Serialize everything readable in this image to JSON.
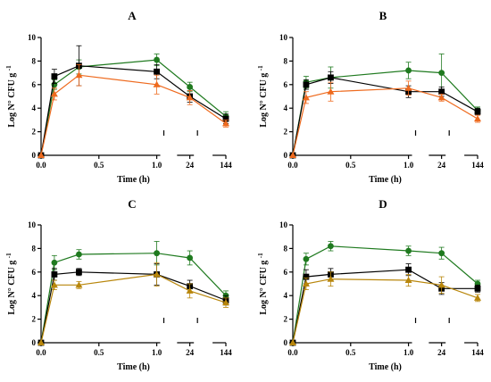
{
  "chart_data": [
    {
      "type": "line",
      "title": "A",
      "xlabel": "Time (h)",
      "ylabel": "Log N° CFU g",
      "ylabel_superscript": "-1",
      "ylim": [
        0,
        10
      ],
      "yticks": [
        0,
        2,
        4,
        6,
        8,
        10
      ],
      "x_ticks": [
        "0.0",
        "0.5",
        "1.0",
        "24",
        "144"
      ],
      "x": [
        "0",
        "0.083",
        "0.33",
        "1.0",
        "24",
        "144"
      ],
      "series": [
        {
          "color": "#1f7a1f",
          "marker": "circle",
          "values": [
            0,
            6.0,
            7.5,
            8.1,
            5.8,
            3.3
          ],
          "errors": [
            0,
            0.4,
            0.6,
            0.5,
            0.4,
            0.4
          ]
        },
        {
          "color": "#000000",
          "marker": "square",
          "values": [
            0,
            6.7,
            7.6,
            7.1,
            5.0,
            3.1
          ],
          "errors": [
            0,
            0.6,
            1.7,
            0.6,
            0.5,
            0.4
          ]
        },
        {
          "color": "#ee6a1e",
          "marker": "triangle",
          "values": [
            0,
            5.2,
            6.8,
            6.0,
            4.9,
            2.7
          ],
          "errors": [
            0,
            0.5,
            0.9,
            0.8,
            0.6,
            0.3
          ]
        }
      ]
    },
    {
      "type": "line",
      "title": "B",
      "xlabel": "Time (h)",
      "ylabel": "Log N° CFU g",
      "ylabel_superscript": "-1",
      "ylim": [
        0,
        10
      ],
      "yticks": [
        0,
        2,
        4,
        6,
        8,
        10
      ],
      "x_ticks": [
        "0.0",
        "0.5",
        "1.0",
        "24",
        "144"
      ],
      "x": [
        "0",
        "0.083",
        "0.33",
        "1.0",
        "24",
        "144"
      ],
      "series": [
        {
          "color": "#1f7a1f",
          "marker": "circle",
          "values": [
            0,
            6.2,
            6.6,
            7.2,
            7.0,
            3.8
          ],
          "errors": [
            0,
            0.5,
            0.9,
            0.7,
            1.6,
            0.3
          ]
        },
        {
          "color": "#000000",
          "marker": "square",
          "values": [
            0,
            6.0,
            6.6,
            5.4,
            5.4,
            3.7
          ],
          "errors": [
            0,
            0.4,
            0.5,
            0.5,
            0.4,
            0.3
          ]
        },
        {
          "color": "#ee6a1e",
          "marker": "triangle",
          "values": [
            0,
            4.9,
            5.4,
            5.7,
            4.9,
            3.1
          ],
          "errors": [
            0,
            0.5,
            0.8,
            0.6,
            0.3,
            0.3
          ]
        }
      ]
    },
    {
      "type": "line",
      "title": "C",
      "xlabel": "Time (h)",
      "ylabel": "Log N° CFU g",
      "ylabel_superscript": "-1",
      "ylim": [
        0,
        10
      ],
      "yticks": [
        0,
        2,
        4,
        6,
        8,
        10
      ],
      "x_ticks": [
        "0.0",
        "0.5",
        "1.0",
        "24",
        "144"
      ],
      "x": [
        "0",
        "0.083",
        "0.33",
        "1.0",
        "24",
        "144"
      ],
      "series": [
        {
          "color": "#1f7a1f",
          "marker": "circle",
          "values": [
            0,
            6.8,
            7.5,
            7.6,
            7.2,
            4.0
          ],
          "errors": [
            0,
            0.6,
            0.4,
            1.0,
            0.6,
            0.4
          ]
        },
        {
          "color": "#000000",
          "marker": "square",
          "values": [
            0,
            5.8,
            6.0,
            5.8,
            4.8,
            3.6
          ],
          "errors": [
            0,
            0.5,
            0.3,
            0.9,
            0.5,
            0.4
          ]
        },
        {
          "color": "#b8860b",
          "marker": "triangle",
          "values": [
            0,
            4.9,
            4.9,
            5.8,
            4.4,
            3.4
          ],
          "errors": [
            0,
            0.4,
            0.3,
            1.0,
            0.6,
            0.4
          ]
        }
      ]
    },
    {
      "type": "line",
      "title": "D",
      "xlabel": "Time (h)",
      "ylabel": "Log N° CFU g",
      "ylabel_superscript": "-1",
      "ylim": [
        0,
        10
      ],
      "yticks": [
        0,
        2,
        4,
        6,
        8,
        10
      ],
      "x_ticks": [
        "0.0",
        "0.5",
        "1.0",
        "24",
        "144"
      ],
      "x": [
        "0",
        "0.083",
        "0.33",
        "1.0",
        "24",
        "144"
      ],
      "series": [
        {
          "color": "#1f7a1f",
          "marker": "circle",
          "values": [
            0,
            7.1,
            8.2,
            7.8,
            7.6,
            5.0
          ],
          "errors": [
            0,
            0.5,
            0.4,
            0.4,
            0.5,
            0.3
          ]
        },
        {
          "color": "#000000",
          "marker": "square",
          "values": [
            0,
            5.6,
            5.8,
            6.2,
            4.6,
            4.6
          ],
          "errors": [
            0,
            0.6,
            0.5,
            0.5,
            0.5,
            0.3
          ]
        },
        {
          "color": "#b8860b",
          "marker": "triangle",
          "values": [
            0,
            5.0,
            5.4,
            5.3,
            4.9,
            3.8
          ],
          "errors": [
            0,
            0.5,
            0.6,
            0.5,
            0.7,
            0.3
          ]
        }
      ]
    }
  ]
}
